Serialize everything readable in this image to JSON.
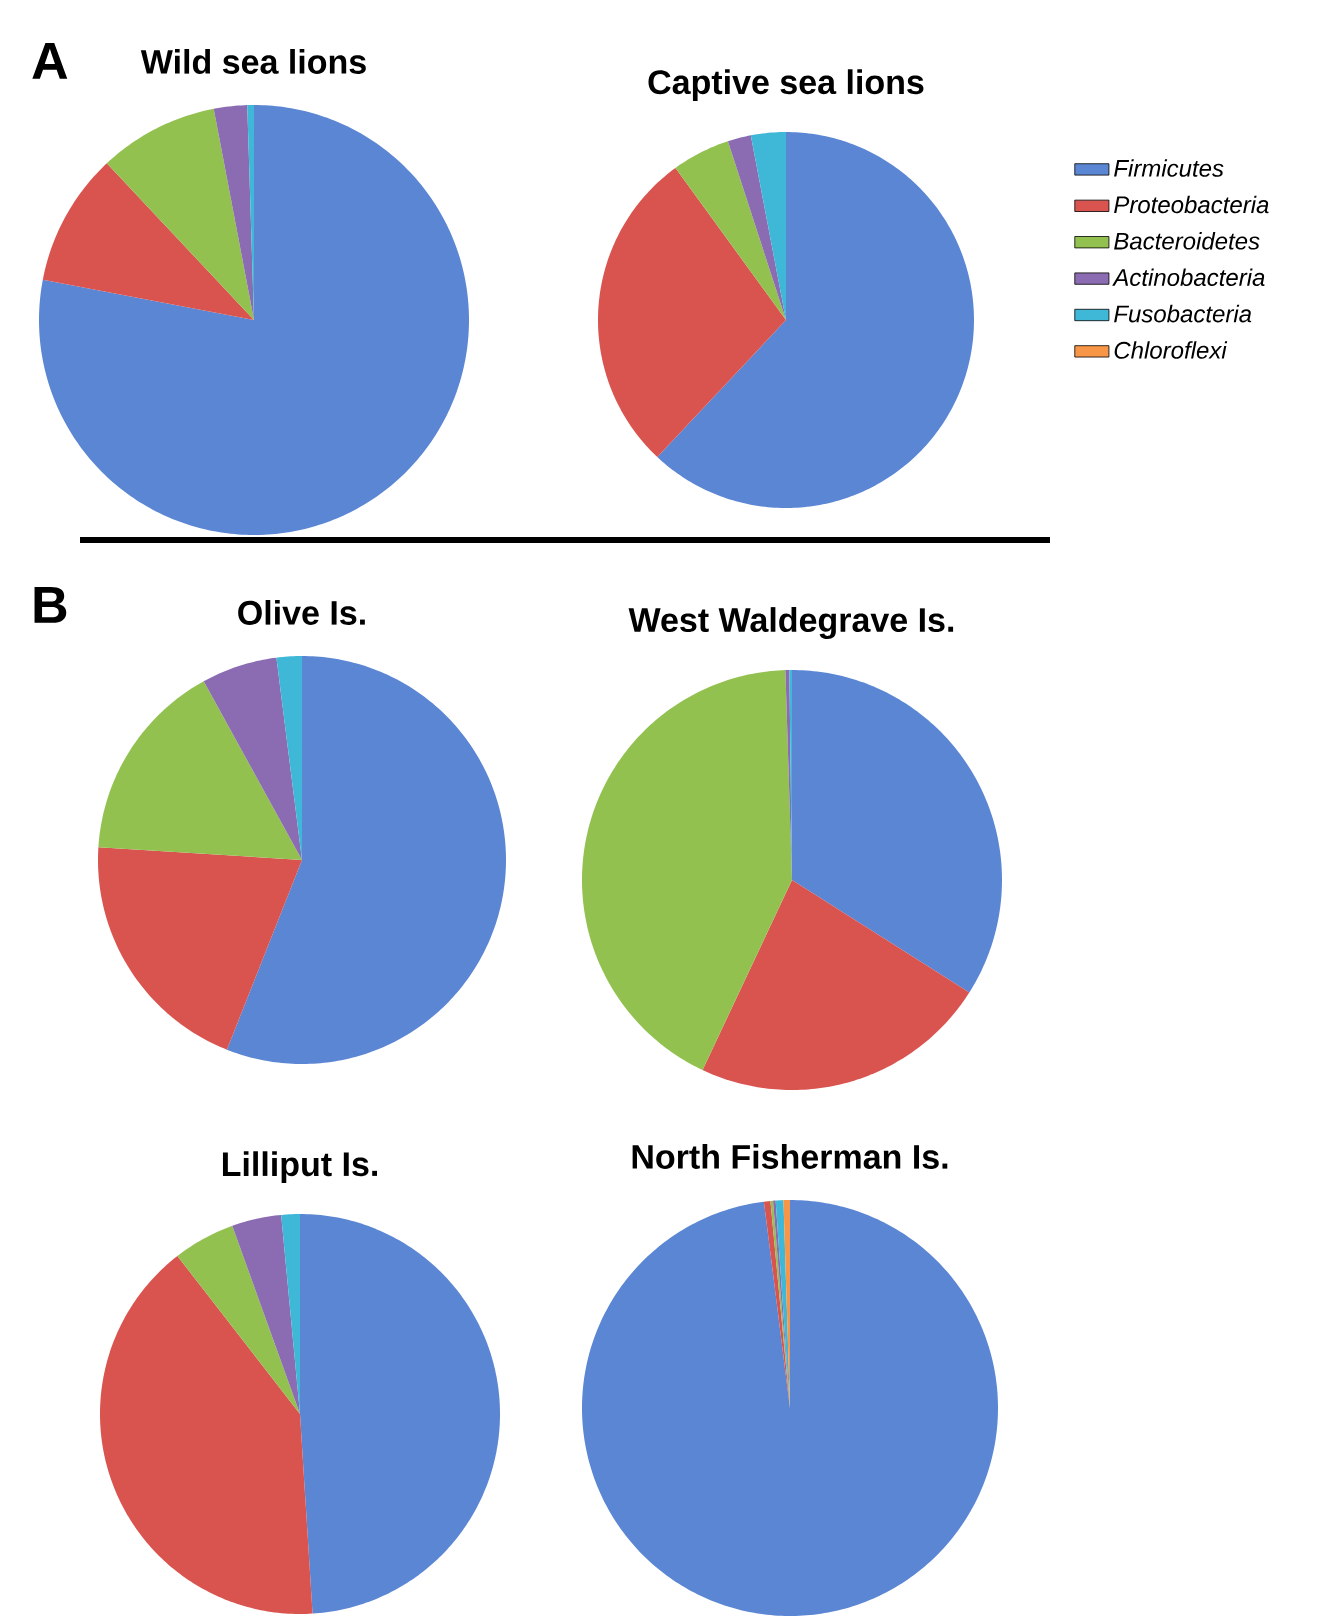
{
  "chart_data": [
    {
      "type": "pie",
      "title": "Wild sea lions",
      "annotations": [
        "A"
      ],
      "categories": [
        null,
        null,
        null,
        null,
        null,
        null
      ],
      "values": [
        78,
        10,
        9,
        2.5,
        0.5,
        0
      ],
      "colors": [
        "#5b86d4",
        "#d9534f",
        "#93c150",
        "#8b6bb1",
        "#3fb8d8",
        "#f79646"
      ]
    },
    {
      "type": "pie",
      "title": "Captive sea lions",
      "legend": "right",
      "categories": [
        "Firmicutes",
        "Proteobacteria",
        "Bacteroidetes",
        "Actinobacteria",
        "Fusobacteria",
        "Chloroflexi"
      ],
      "values": [
        62,
        28,
        5,
        2,
        3,
        0
      ],
      "colors": [
        "#5b86d4",
        "#d9534f",
        "#93c150",
        "#8b6bb1",
        "#3fb8d8",
        "#f79646"
      ]
    },
    {
      "type": "pie",
      "title": "Olive Is.",
      "annotations": [
        "B"
      ],
      "categories": [
        null,
        null,
        null,
        null,
        null,
        null
      ],
      "values": [
        56,
        20,
        16,
        6,
        2,
        0
      ],
      "colors": [
        "#5b86d4",
        "#d9534f",
        "#93c150",
        "#8b6bb1",
        "#3fb8d8",
        "#f79646"
      ]
    },
    {
      "type": "pie",
      "title": "West Waldegrave Is.",
      "categories": [
        null,
        null,
        null,
        null,
        null,
        null
      ],
      "values": [
        34,
        23,
        42.5,
        0.3,
        0.2,
        0
      ],
      "colors": [
        "#5b86d4",
        "#d9534f",
        "#93c150",
        "#8b6bb1",
        "#3fb8d8",
        "#f79646"
      ]
    },
    {
      "type": "pie",
      "title": "Lilliput Is.",
      "categories": [
        null,
        null,
        null,
        null,
        null,
        null
      ],
      "values": [
        49,
        40.5,
        5,
        4,
        1.5,
        0
      ],
      "colors": [
        "#5b86d4",
        "#d9534f",
        "#93c150",
        "#8b6bb1",
        "#3fb8d8",
        "#f79646"
      ]
    },
    {
      "type": "pie",
      "title": "North Fisherman Is.",
      "categories": [
        null,
        null,
        null,
        null,
        null,
        null
      ],
      "values": [
        98,
        0.5,
        0.2,
        0.2,
        0.6,
        0.5
      ],
      "colors": [
        "#5b86d4",
        "#d9534f",
        "#93c150",
        "#8b6bb1",
        "#3fb8d8",
        "#f79646"
      ]
    }
  ]
}
